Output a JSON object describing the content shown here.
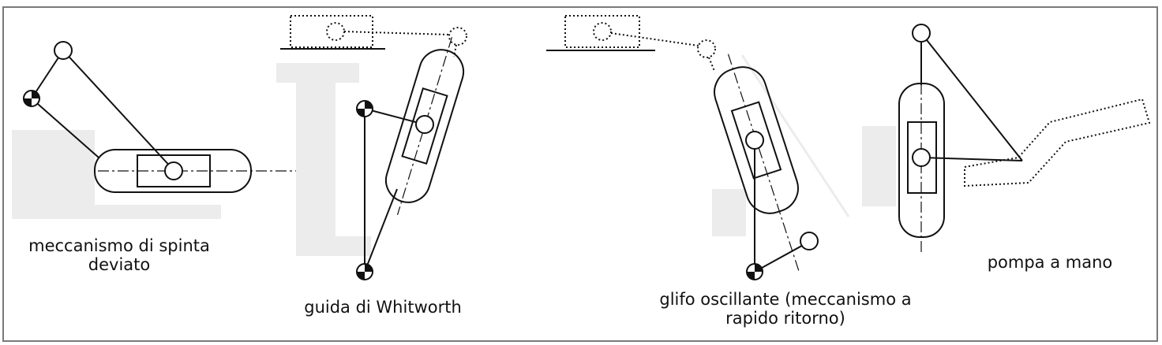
{
  "diagram": {
    "colors": {
      "stroke": "#111111",
      "shadow": "#ececec",
      "frame_border": "#7a7a7a",
      "pivot_dark": "#111111",
      "pivot_light": "#ffffff"
    },
    "mechanisms": [
      {
        "id": "offset-slider-crank",
        "caption": "meccanismo di spinta\ndeviato"
      },
      {
        "id": "whitworth",
        "caption": "guida di Whitworth"
      },
      {
        "id": "oscillating-slot",
        "caption": "glifo oscillante (meccanismo a\nrapido ritorno)"
      },
      {
        "id": "hand-pump",
        "caption": "pompa a mano"
      }
    ]
  }
}
